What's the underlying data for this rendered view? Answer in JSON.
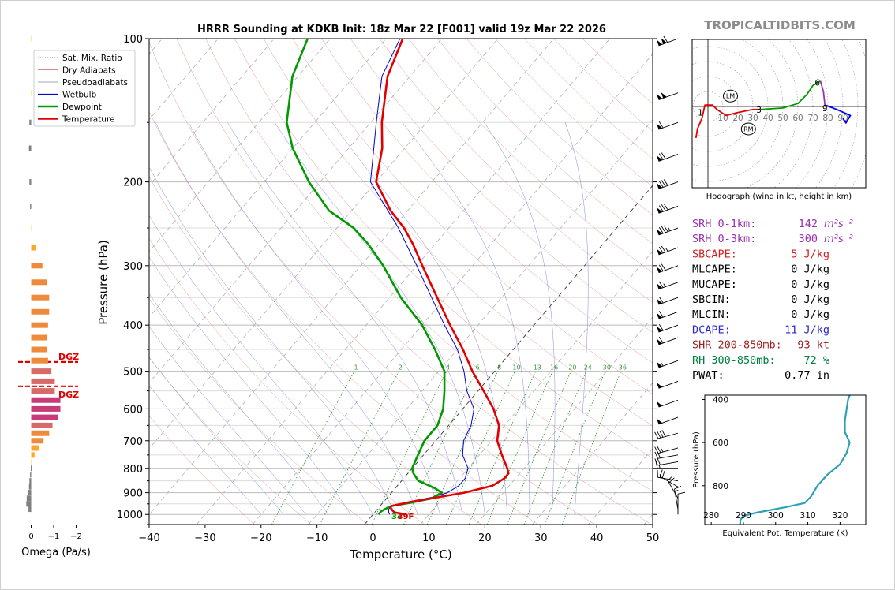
{
  "watermark": "TROPICALTIDBITS.COM",
  "chart_data": [
    {
      "type": "line",
      "chart": "skew-t log-p",
      "title": "HRRR Sounding at KDKB Init: 18z Mar 22 [F001] valid 19z Mar 22 2026",
      "xlabel": "Temperature (°C)",
      "ylabel": "Pressure (hPa)",
      "xlim": [
        -40,
        50
      ],
      "ylim": [
        1050,
        100
      ],
      "y_scale": "log",
      "x_ticks": [
        -40,
        -30,
        -20,
        -10,
        0,
        10,
        20,
        30,
        40,
        50
      ],
      "y_ticks": [
        100,
        200,
        300,
        400,
        500,
        600,
        700,
        800,
        900,
        1000
      ],
      "grid": true,
      "legend_position": "top-left",
      "legend": [
        {
          "label": "Sat. Mix. Ratio",
          "color": "#2e8b2e",
          "style": "dotted"
        },
        {
          "label": "Dry Adiabats",
          "color": "#c06060",
          "style": "solid-thin"
        },
        {
          "label": "Pseudoadiabats",
          "color": "#8080c0",
          "style": "solid-thin"
        },
        {
          "label": "Wetbulb",
          "color": "#0000d0",
          "style": "solid"
        },
        {
          "label": "Dewpoint",
          "color": "#009900",
          "style": "solid-thick"
        },
        {
          "label": "Temperature",
          "color": "#e00000",
          "style": "solid-thick"
        }
      ],
      "mixing_ratio_labels": [
        "1",
        "2",
        "4",
        "6",
        "8",
        "10",
        "13",
        "16",
        "20",
        "24",
        "30",
        "36"
      ],
      "surface_dewpoint_label": "34",
      "surface_temperature_label": "39F",
      "series": [
        {
          "name": "Temperature",
          "color": "#e00000",
          "points": [
            [
              1000,
              6
            ],
            [
              990,
              3.5
            ],
            [
              975,
              2.5
            ],
            [
              965,
              2
            ],
            [
              960,
              2
            ],
            [
              940,
              5
            ],
            [
              920,
              9
            ],
            [
              900,
              13
            ],
            [
              870,
              17
            ],
            [
              840,
              18
            ],
            [
              820,
              18
            ],
            [
              800,
              17
            ],
            [
              750,
              14
            ],
            [
              700,
              11
            ],
            [
              650,
              9
            ],
            [
              600,
              5.5
            ],
            [
              550,
              1
            ],
            [
              500,
              -4
            ],
            [
              450,
              -9
            ],
            [
              400,
              -15
            ],
            [
              350,
              -21.5
            ],
            [
              300,
              -29
            ],
            [
              270,
              -34
            ],
            [
              250,
              -38
            ],
            [
              230,
              -43
            ],
            [
              200,
              -50
            ],
            [
              170,
              -54
            ],
            [
              150,
              -58
            ],
            [
              120,
              -64
            ],
            [
              100,
              -67
            ]
          ]
        },
        {
          "name": "Dewpoint",
          "color": "#009900",
          "points": [
            [
              1000,
              1
            ],
            [
              985,
              1
            ],
            [
              970,
              1.5
            ],
            [
              960,
              2
            ],
            [
              945,
              5
            ],
            [
              925,
              8
            ],
            [
              900,
              9
            ],
            [
              880,
              7
            ],
            [
              850,
              3
            ],
            [
              820,
              1
            ],
            [
              800,
              0
            ],
            [
              750,
              -1
            ],
            [
              700,
              -2
            ],
            [
              650,
              -2
            ],
            [
              600,
              -3.5
            ],
            [
              550,
              -6
            ],
            [
              500,
              -9
            ],
            [
              450,
              -14
            ],
            [
              400,
              -20
            ],
            [
              350,
              -28
            ],
            [
              300,
              -36
            ],
            [
              270,
              -42
            ],
            [
              250,
              -47
            ],
            [
              230,
              -54
            ],
            [
              200,
              -62
            ],
            [
              170,
              -70
            ],
            [
              150,
              -75
            ],
            [
              120,
              -81
            ],
            [
              100,
              -84
            ]
          ]
        },
        {
          "name": "Wetbulb",
          "color": "#0000d0",
          "points": [
            [
              1000,
              3
            ],
            [
              990,
              2.5
            ],
            [
              975,
              2
            ],
            [
              960,
              2
            ],
            [
              940,
              4.5
            ],
            [
              920,
              8
            ],
            [
              900,
              10
            ],
            [
              870,
              11
            ],
            [
              840,
              11
            ],
            [
              800,
              10
            ],
            [
              750,
              7
            ],
            [
              700,
              5
            ],
            [
              650,
              4
            ],
            [
              600,
              2
            ],
            [
              550,
              -2
            ],
            [
              500,
              -5.5
            ],
            [
              450,
              -10
            ],
            [
              400,
              -16
            ],
            [
              350,
              -22.5
            ],
            [
              300,
              -30
            ],
            [
              250,
              -39
            ],
            [
              200,
              -51
            ],
            [
              150,
              -59
            ],
            [
              120,
              -65
            ],
            [
              100,
              -67.5
            ]
          ]
        }
      ],
      "annotations": [
        {
          "type": "dgz_bound",
          "pressure": 478,
          "label": "DGZ",
          "color": "#e00000"
        },
        {
          "type": "dgz_bound",
          "pressure": 538,
          "label": "DGZ",
          "color": "#e00000"
        }
      ]
    },
    {
      "type": "line",
      "chart": "hodograph",
      "caption": "Hodograph (wind in kt, height in km)",
      "ring_labels": [
        "10",
        "20",
        "30",
        "40",
        "50",
        "60",
        "70",
        "80",
        "90"
      ],
      "series": [
        {
          "name": "0-1 km",
          "color": "#e00000",
          "points": [
            [
              -8,
              -21
            ],
            [
              -7,
              -15
            ],
            [
              -4,
              -8
            ],
            [
              -2,
              1
            ],
            [
              0,
              1
            ],
            [
              3,
              1
            ],
            [
              6,
              -2
            ]
          ]
        },
        {
          "name": "1-3 km",
          "color": "#e00000",
          "points": [
            [
              6,
              -2
            ],
            [
              12,
              -6
            ],
            [
              20,
              -4
            ],
            [
              30,
              -2
            ],
            [
              35,
              -2
            ]
          ]
        },
        {
          "name": "3-6 km",
          "color": "#009900",
          "points": [
            [
              35,
              -2
            ],
            [
              50,
              -1
            ],
            [
              60,
              2
            ],
            [
              66,
              8
            ],
            [
              70,
              14
            ],
            [
              75,
              17
            ]
          ]
        },
        {
          "name": "6-9 km",
          "color": "#9b30b0",
          "points": [
            [
              75,
              17
            ],
            [
              77,
              10
            ],
            [
              78,
              1
            ]
          ]
        },
        {
          "name": "9+ km",
          "color": "#0000ee",
          "points": [
            [
              78,
              1
            ],
            [
              86,
              -2
            ],
            [
              95,
              -6
            ],
            [
              92,
              -11
            ],
            [
              90,
              -8
            ]
          ]
        }
      ],
      "height_labels": [
        {
          "label": "1",
          "u": -5,
          "v": -4
        },
        {
          "label": "3",
          "u": 34,
          "v": -2
        },
        {
          "label": "6",
          "u": 73,
          "v": 16
        },
        {
          "label": "9",
          "u": 78,
          "v": -1
        }
      ],
      "storm_motion": [
        {
          "label": "LM",
          "u": 15,
          "v": 7
        },
        {
          "label": "RM",
          "u": 27,
          "v": -15
        }
      ]
    },
    {
      "type": "line",
      "chart": "equivalent potential temperature profile",
      "xlabel": "Equivalent Pot. Temperature (K)",
      "ylabel": "Pressure (hPa)",
      "xlim": [
        278,
        328
      ],
      "ylim": [
        980,
        380
      ],
      "x_ticks": [
        280,
        290,
        300,
        310,
        320
      ],
      "y_ticks": [
        400,
        600,
        800
      ],
      "series": [
        {
          "name": "Theta-e",
          "color": "#2ea0b4",
          "points": [
            [
              980,
              289
            ],
            [
              960,
              289
            ],
            [
              940,
              290
            ],
            [
              925,
              294
            ],
            [
              900,
              303
            ],
            [
              880,
              309
            ],
            [
              850,
              311
            ],
            [
              800,
              313
            ],
            [
              750,
              316
            ],
            [
              700,
              320
            ],
            [
              650,
              322
            ],
            [
              600,
              323
            ],
            [
              550,
              321.5
            ],
            [
              500,
              321.5
            ],
            [
              450,
              322
            ],
            [
              400,
              322.5
            ],
            [
              380,
              323
            ]
          ]
        }
      ]
    },
    {
      "type": "bar",
      "chart": "omega",
      "xlabel": "Omega (Pa/s)",
      "xlim": [
        0.3,
        -2.3
      ],
      "x_ticks": [
        "0",
        "−1",
        "−2"
      ],
      "values": [
        {
          "p": 100,
          "omega": -0.05
        },
        {
          "p": 130,
          "omega": -0.02
        },
        {
          "p": 150,
          "omega": 0.08
        },
        {
          "p": 170,
          "omega": 0.1
        },
        {
          "p": 200,
          "omega": 0.08
        },
        {
          "p": 225,
          "omega": 0.05
        },
        {
          "p": 250,
          "omega": -0.02
        },
        {
          "p": 275,
          "omega": -0.2
        },
        {
          "p": 300,
          "omega": -0.5
        },
        {
          "p": 325,
          "omega": -0.7
        },
        {
          "p": 350,
          "omega": -0.8
        },
        {
          "p": 375,
          "omega": -0.8
        },
        {
          "p": 400,
          "omega": -0.75
        },
        {
          "p": 425,
          "omega": -0.7
        },
        {
          "p": 450,
          "omega": -0.7
        },
        {
          "p": 475,
          "omega": -0.75
        },
        {
          "p": 500,
          "omega": -0.9
        },
        {
          "p": 525,
          "omega": -1.05
        },
        {
          "p": 550,
          "omega": -1.05
        },
        {
          "p": 575,
          "omega": -1.3
        },
        {
          "p": 600,
          "omega": -1.3
        },
        {
          "p": 625,
          "omega": -1.2
        },
        {
          "p": 650,
          "omega": -0.95
        },
        {
          "p": 675,
          "omega": -0.8
        },
        {
          "p": 700,
          "omega": -0.55
        },
        {
          "p": 725,
          "omega": -0.35
        },
        {
          "p": 750,
          "omega": -0.15
        },
        {
          "p": 775,
          "omega": -0.05
        },
        {
          "p": 800,
          "omega": 0.02
        },
        {
          "p": 825,
          "omega": 0.05
        },
        {
          "p": 850,
          "omega": 0.08
        },
        {
          "p": 875,
          "omega": 0.1
        },
        {
          "p": 900,
          "omega": 0.15
        },
        {
          "p": 925,
          "omega": 0.2
        },
        {
          "p": 950,
          "omega": 0.22
        },
        {
          "p": 975,
          "omega": 0.12
        }
      ]
    }
  ],
  "wind_barbs": [
    {
      "p": 100,
      "spd": 110,
      "dir": 250
    },
    {
      "p": 130,
      "spd": 100,
      "dir": 250
    },
    {
      "p": 150,
      "spd": 60,
      "dir": 250
    },
    {
      "p": 175,
      "spd": 70,
      "dir": 250
    },
    {
      "p": 200,
      "spd": 80,
      "dir": 250
    },
    {
      "p": 225,
      "spd": 80,
      "dir": 250
    },
    {
      "p": 250,
      "spd": 85,
      "dir": 250
    },
    {
      "p": 275,
      "spd": 75,
      "dir": 250
    },
    {
      "p": 300,
      "spd": 70,
      "dir": 250
    },
    {
      "p": 325,
      "spd": 65,
      "dir": 250
    },
    {
      "p": 350,
      "spd": 60,
      "dir": 250
    },
    {
      "p": 375,
      "spd": 60,
      "dir": 250
    },
    {
      "p": 400,
      "spd": 60,
      "dir": 250
    },
    {
      "p": 425,
      "spd": 60,
      "dir": 250
    },
    {
      "p": 475,
      "spd": 55,
      "dir": 250
    },
    {
      "p": 525,
      "spd": 50,
      "dir": 250
    },
    {
      "p": 575,
      "spd": 50,
      "dir": 250
    },
    {
      "p": 625,
      "spd": 50,
      "dir": 250
    },
    {
      "p": 675,
      "spd": 40,
      "dir": 255
    },
    {
      "p": 725,
      "spd": 25,
      "dir": 255
    },
    {
      "p": 750,
      "spd": 20,
      "dir": 260
    },
    {
      "p": 775,
      "spd": 20,
      "dir": 260
    },
    {
      "p": 800,
      "spd": 15,
      "dir": 270
    },
    {
      "p": 850,
      "spd": 15,
      "dir": 280
    },
    {
      "p": 875,
      "spd": 20,
      "dir": 300
    },
    {
      "p": 925,
      "spd": 20,
      "dir": 330
    },
    {
      "p": 975,
      "spd": 15,
      "dir": 350
    },
    {
      "p": 1000,
      "spd": 10,
      "dir": 0
    }
  ],
  "parameters": [
    {
      "label": "SRH 0-1km:",
      "value": "142",
      "unit": "m²s⁻²",
      "color": "#9b30b0"
    },
    {
      "label": "SRH 0-3km:",
      "value": "300",
      "unit": "m²s⁻²",
      "color": "#9b30b0"
    },
    {
      "label": "SBCAPE:",
      "value": "5 J/kg",
      "unit": "",
      "color": "#d02020"
    },
    {
      "label": "MLCAPE:",
      "value": "0 J/kg",
      "unit": "",
      "color": "#000000"
    },
    {
      "label": "MUCAPE:",
      "value": "0 J/kg",
      "unit": "",
      "color": "#000000"
    },
    {
      "label": "SBCIN:",
      "value": "0 J/kg",
      "unit": "",
      "color": "#000000"
    },
    {
      "label": "MLCIN:",
      "value": "0 J/kg",
      "unit": "",
      "color": "#000000"
    },
    {
      "label": "DCAPE:",
      "value": "11 J/kg",
      "unit": "",
      "color": "#2a2ad0"
    },
    {
      "label": "SHR 200-850mb:",
      "value": "93 kt",
      "unit": "",
      "color": "#a02020"
    },
    {
      "label": "RH 300-850mb:",
      "value": "72 %",
      "unit": "",
      "color": "#008040"
    },
    {
      "label": "PWAT:",
      "value": "0.77 in",
      "unit": "",
      "color": "#000000"
    }
  ]
}
